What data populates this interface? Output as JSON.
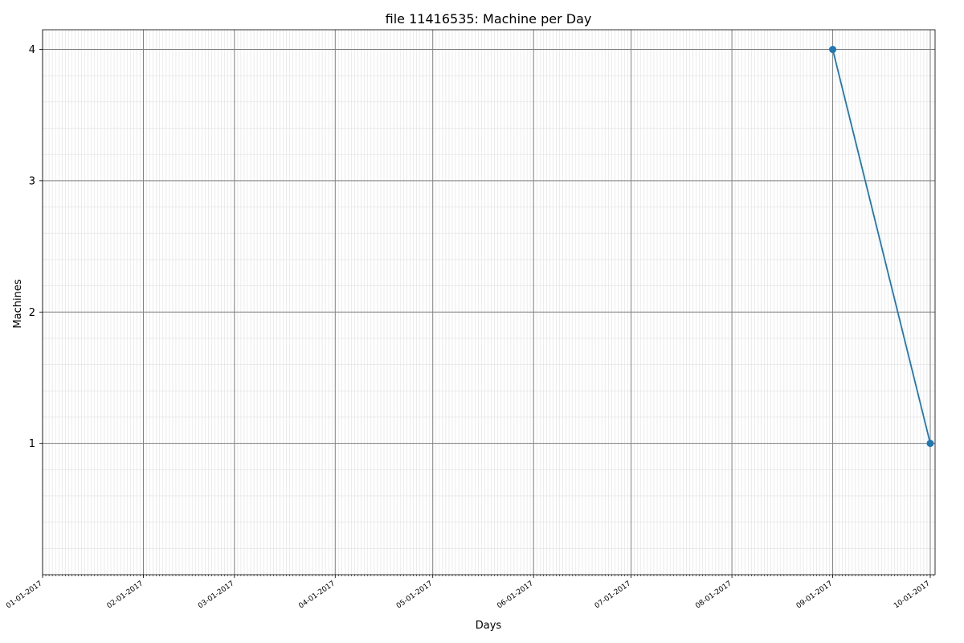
{
  "chart_data": {
    "type": "line",
    "title": "file 11416535: Machine per Day",
    "xlabel": "Days",
    "ylabel": "Machines",
    "x_ticks": [
      "01-01-2017",
      "02-01-2017",
      "03-01-2017",
      "04-01-2017",
      "05-01-2017",
      "06-01-2017",
      "07-01-2017",
      "08-01-2017",
      "09-01-2017",
      "10-01-2017"
    ],
    "y_ticks": [
      "1",
      "2",
      "3",
      "4"
    ],
    "xlim": [
      "01-01-2017",
      "10-01-2017"
    ],
    "ylim": [
      0,
      4.15
    ],
    "series": [
      {
        "points": [
          {
            "x": "09-01-2017",
            "y": 4
          },
          {
            "x": "10-01-2017",
            "y": 1
          }
        ]
      }
    ],
    "grid": {
      "major": true,
      "minor": true
    },
    "colors": {
      "line": "#1f77b4",
      "major_grid": "#7f7f7f",
      "minor_grid": "#e0e0e0"
    }
  }
}
